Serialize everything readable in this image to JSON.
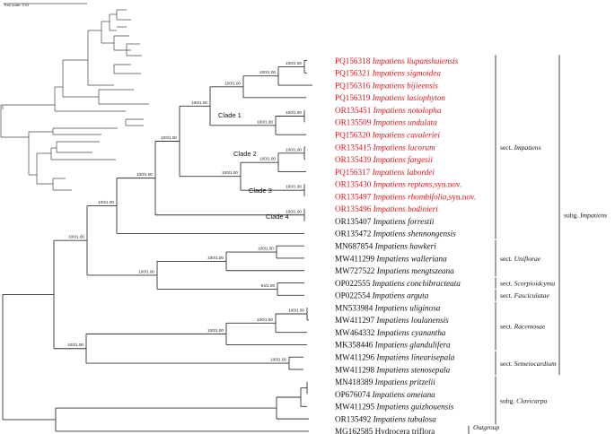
{
  "colors": {
    "highlight": "#e0141c",
    "normal": "#111111"
  },
  "scale_label": "Tree scale: 0.01",
  "tips": [
    {
      "acc": "PQ156318",
      "name": "Impatiens liupanshuiensis",
      "red": true
    },
    {
      "acc": "PQ156321",
      "name": "Impatiens sigmoidea",
      "red": true
    },
    {
      "acc": "PQ156316",
      "name": "Impatiens bijieensis",
      "red": true
    },
    {
      "acc": "PQ156319",
      "name": "Impatiens lasiophyton",
      "red": true
    },
    {
      "acc": "OR135451",
      "name": "Impatiens notolopha",
      "red": true
    },
    {
      "acc": "OR135509",
      "name": "Impatiens undulata",
      "red": true
    },
    {
      "acc": "PQ156320",
      "name": "Impatiens cavaleriei",
      "red": true
    },
    {
      "acc": "OR135415",
      "name": "Impatiens lucorum",
      "red": true
    },
    {
      "acc": "OR135439",
      "name": "Impatiens fargesii",
      "red": true
    },
    {
      "acc": "PQ156317",
      "name": "Impatiens labordei",
      "red": true
    },
    {
      "acc": "OR135430",
      "name": "Impatiens reptans",
      "suffix": ",syn.nov.",
      "red": true
    },
    {
      "acc": "OR135497",
      "name": "Impatiens rhombifolia",
      "suffix": ",syn.nov.",
      "red": true
    },
    {
      "acc": "OR135496",
      "name": "Impatiens bodinieri",
      "red": true
    },
    {
      "acc": "OR135407",
      "name": "Impatiens forrestii",
      "red": false
    },
    {
      "acc": "OR135472",
      "name": "Impatiens shennongensis",
      "red": false
    },
    {
      "acc": "MN687854",
      "name": "Impatiens hawkeri",
      "red": false
    },
    {
      "acc": "MW411299",
      "name": "Impatiens walleriana",
      "red": false
    },
    {
      "acc": "MW727522",
      "name": "Impatiens mengtszeana",
      "red": false
    },
    {
      "acc": "OP022555",
      "name": "Impatiens conchibracteata",
      "red": false
    },
    {
      "acc": "OP022554",
      "name": "Impatiens arguta",
      "red": false
    },
    {
      "acc": "MN533984",
      "name": "Impatiens uliginosa",
      "red": false
    },
    {
      "acc": "MW411297",
      "name": "Impatiens loulanensis",
      "red": false
    },
    {
      "acc": "MW464332",
      "name": "Impatiens cyanantha",
      "red": false
    },
    {
      "acc": "MK358446",
      "name": "Impatiens glandulifera",
      "red": false
    },
    {
      "acc": "MW411296",
      "name": "Impatiens linearisepala",
      "red": false
    },
    {
      "acc": "MW411298",
      "name": "Impatiens stenosepala",
      "red": false
    },
    {
      "acc": "MN418389",
      "name": "Impatiens pritzelii",
      "red": false
    },
    {
      "acc": "OP676074",
      "name": "Impatiens omeiana",
      "red": false
    },
    {
      "acc": "MW411295",
      "name": "Impatiens guizhouensis",
      "red": false
    },
    {
      "acc": "OR135492",
      "name": "Impatiens tubulosa",
      "red": false
    },
    {
      "acc": "MG162585",
      "name": "Hydrocera triflora",
      "red": false,
      "plain": true
    }
  ],
  "supports": [
    "100/1.00",
    "100/1.00",
    "100/1.00",
    "100/1.00",
    "100/1.00",
    "100/1.00",
    "100/1.00",
    "100/1.00",
    "100/1.00",
    "100/1.00",
    "100/1.00",
    "100/1.00",
    "100/1.00",
    "100/1.00",
    "100/1.00",
    "100/1.00",
    "94/1.00",
    "100/1.00",
    "100/1.00",
    "100/1.00",
    "100/1.00",
    "100/1.00",
    "100/1.00",
    "100/1.00"
  ],
  "clades": [
    "Clade 1",
    "Clade 2",
    "Clade 3",
    "Clade 4"
  ],
  "sections": [
    {
      "prefix": "sect.",
      "name": "Impatiens"
    },
    {
      "prefix": "sect.",
      "name": "Uniflorae"
    },
    {
      "prefix": "sect.",
      "name": "Scorpioidcyma"
    },
    {
      "prefix": "sect.",
      "name": "Fasciculatae"
    },
    {
      "prefix": "sect.",
      "name": "Racemosae"
    },
    {
      "prefix": "sect.",
      "name": "Semeiocardium"
    },
    {
      "prefix": "subg.",
      "name": "Impatiens"
    },
    {
      "prefix": "subg.",
      "name": "Clavicarpa"
    },
    {
      "prefix": "",
      "name": "Outgroup"
    }
  ]
}
